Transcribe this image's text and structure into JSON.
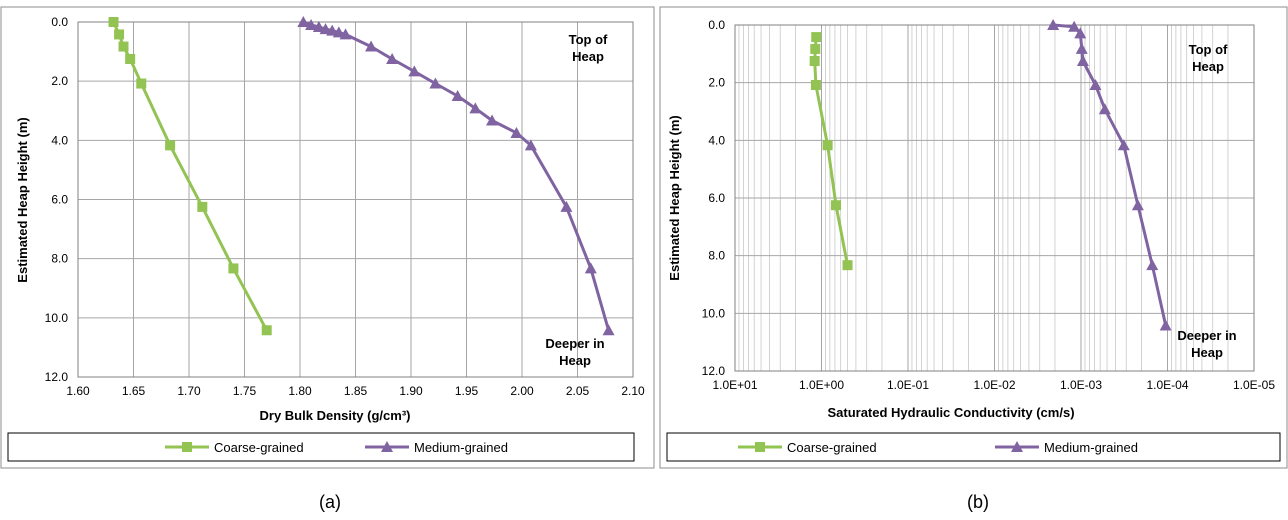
{
  "colors": {
    "coarse": "#92c353",
    "medium": "#8064a2",
    "border": "#8c8c8c",
    "grid": "#a6a6a6"
  },
  "chart_data": [
    {
      "id": "a",
      "type": "line",
      "caption": "(a)",
      "xlabel": "Dry Bulk Density (g/cm³)",
      "ylabel": "Estimated Heap Height (m)",
      "xscale": "linear",
      "xlim": [
        1.6,
        2.1
      ],
      "ylim": [
        0,
        12
      ],
      "y_inverted": true,
      "xticks": [
        1.6,
        1.65,
        1.7,
        1.75,
        1.8,
        1.85,
        1.9,
        1.95,
        2.0,
        2.05,
        2.1
      ],
      "xtick_labels": [
        "1.60",
        "1.65",
        "1.70",
        "1.75",
        "1.80",
        "1.85",
        "1.90",
        "1.95",
        "2.00",
        "2.05",
        "2.10"
      ],
      "yticks": [
        0,
        2,
        4,
        6,
        8,
        10,
        12
      ],
      "ytick_labels": [
        "0.0",
        "2.0",
        "4.0",
        "6.0",
        "8.0",
        "10.0",
        "12.0"
      ],
      "grid": "major",
      "annotations": [
        {
          "text": "Top of",
          "anchor": "top-right",
          "line": 1
        },
        {
          "text": "Heap",
          "anchor": "top-right",
          "line": 2
        },
        {
          "text": "Deeper in",
          "anchor": "bottom-right",
          "line": 1
        },
        {
          "text": "Heap",
          "anchor": "bottom-right",
          "line": 2
        }
      ],
      "legend": {
        "position": "bottom"
      },
      "series": [
        {
          "name": "Coarse-grained",
          "marker": "square",
          "x": [
            1.632,
            1.637,
            1.641,
            1.647,
            1.657,
            1.683,
            1.712,
            1.74,
            1.77
          ],
          "y": [
            0.0,
            0.42,
            0.83,
            1.25,
            2.08,
            4.17,
            6.25,
            8.33,
            10.42
          ]
        },
        {
          "name": "Medium-grained",
          "marker": "triangle",
          "x": [
            1.803,
            1.81,
            1.817,
            1.823,
            1.829,
            1.835,
            1.841,
            1.864,
            1.883,
            1.903,
            1.922,
            1.942,
            1.958,
            1.973,
            1.995,
            2.008,
            2.04,
            2.062,
            2.078
          ],
          "y": [
            0.0,
            0.1,
            0.17,
            0.24,
            0.29,
            0.35,
            0.42,
            0.83,
            1.25,
            1.67,
            2.08,
            2.5,
            2.92,
            3.33,
            3.75,
            4.17,
            6.25,
            8.33,
            10.42
          ]
        }
      ]
    },
    {
      "id": "b",
      "type": "line",
      "caption": "(b)",
      "xlabel": "Saturated Hydraulic Conductivity (cm/s)",
      "ylabel": "Estimated Heap Height (m)",
      "xscale": "log",
      "x_reversed": true,
      "xlim": [
        10,
        1e-05
      ],
      "ylim": [
        0,
        12
      ],
      "y_inverted": true,
      "xticks": [
        10,
        1,
        0.1,
        0.01,
        0.001,
        0.0001,
        1e-05
      ],
      "xtick_labels": [
        "1.0E+01",
        "1.0E+00",
        "1.0E-01",
        "1.0E-02",
        "1.0E-03",
        "1.0E-04",
        "1.0E-05"
      ],
      "yticks": [
        0,
        2,
        4,
        6,
        8,
        10,
        12
      ],
      "ytick_labels": [
        "0.0",
        "2.0",
        "4.0",
        "6.0",
        "8.0",
        "10.0",
        "12.0"
      ],
      "grid": "major+minor",
      "annotations": [
        {
          "text": "Top of",
          "anchor": "top-right",
          "line": 1
        },
        {
          "text": "Heap",
          "anchor": "top-right",
          "line": 2
        },
        {
          "text": "Deeper in",
          "anchor": "bottom-right",
          "line": 1
        },
        {
          "text": "Heap",
          "anchor": "bottom-right",
          "line": 2
        }
      ],
      "legend": {
        "position": "bottom"
      },
      "series": [
        {
          "name": "Coarse-grained",
          "marker": "square",
          "x": [
            1.15,
            1.18,
            1.2,
            1.16,
            0.85,
            0.68,
            0.5
          ],
          "y": [
            0.42,
            0.83,
            1.25,
            2.08,
            4.17,
            6.25,
            8.33
          ]
        },
        {
          "name": "Medium-grained",
          "marker": "triangle",
          "x": [
            0.0021,
            0.0012,
            0.00102,
            0.00098,
            0.00095,
            0.00068,
            0.00053,
            0.00032,
            0.00022,
            0.00015,
            0.000105
          ],
          "y": [
            0.0,
            0.06,
            0.29,
            0.83,
            1.25,
            2.08,
            2.92,
            4.17,
            6.25,
            8.33,
            10.42
          ]
        }
      ]
    }
  ]
}
